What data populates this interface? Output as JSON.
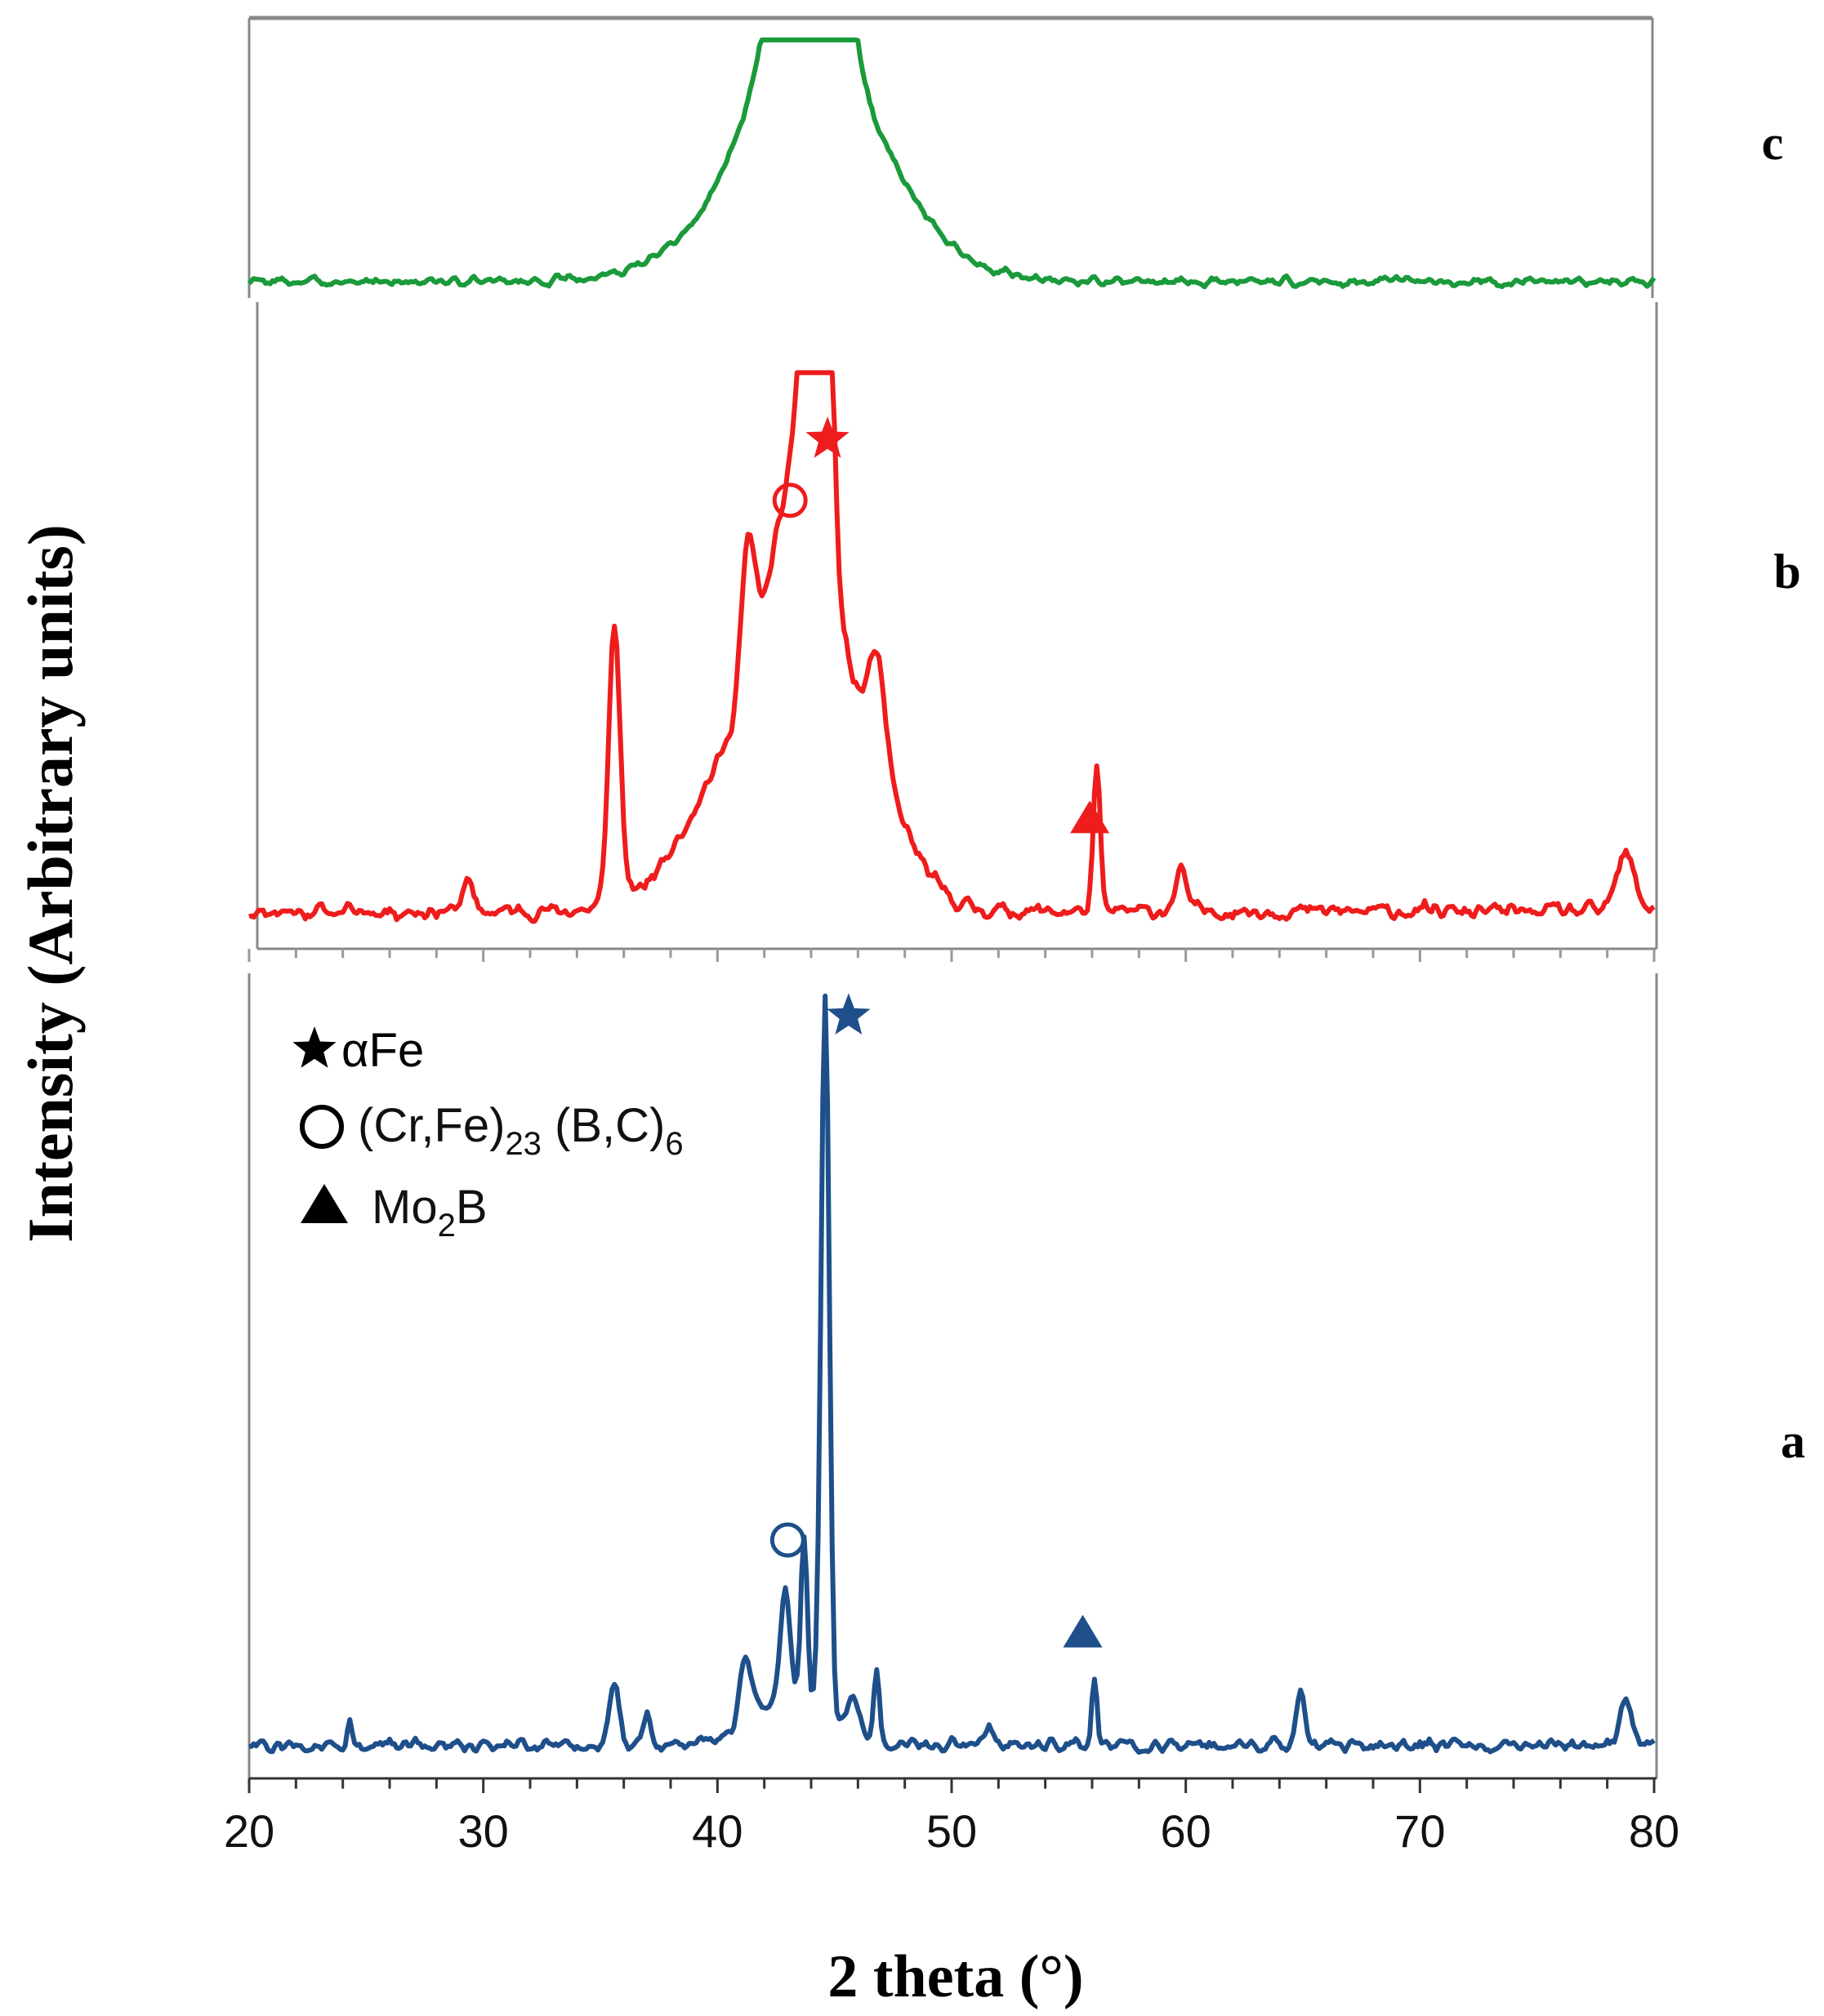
{
  "chart_data": {
    "type": "line",
    "title": "",
    "xlabel": "2 theta (°)",
    "ylabel": "Intensity (Arbitrary units)",
    "xlim": [
      20,
      80
    ],
    "x_ticks": [
      20,
      30,
      40,
      50,
      60,
      70,
      80
    ],
    "x_tick_labels": [
      "20",
      "30",
      "40",
      "50",
      "60",
      "70",
      "80"
    ],
    "grid": false,
    "legend": {
      "placement": "top-left of panel a",
      "entries": [
        {
          "symbol": "star",
          "label": "αFe",
          "label_main": "αFe"
        },
        {
          "symbol": "circle",
          "label": "(Cr,Fe)23 (B,C)6",
          "parts": [
            "(Cr,Fe)",
            "23",
            " (B,C)",
            "6"
          ]
        },
        {
          "symbol": "triangle",
          "label": "Mo2B",
          "parts": [
            "Mo",
            "2",
            "B"
          ]
        }
      ]
    },
    "series": [
      {
        "name": "c",
        "color": "#1a9a3a",
        "ylim": [
          0,
          1
        ],
        "peaks": [
          [
            43.3,
            1.0,
            0.9
          ],
          [
            44.6,
            1.0,
            0.9
          ],
          [
            44.0,
            0.6,
            3.5
          ],
          [
            41.5,
            0.2,
            1.2
          ],
          [
            46.5,
            0.15,
            1.5
          ]
        ],
        "baseline": 0.05,
        "noise": 0.025,
        "seed": 3
      },
      {
        "name": "b",
        "color": "#ee1c1c",
        "ylim": [
          0,
          1
        ],
        "peaks": [
          [
            35.6,
            0.5,
            0.25
          ],
          [
            41.3,
            0.25,
            0.3
          ],
          [
            41.0,
            0.28,
            2.2
          ],
          [
            43.8,
            0.45,
            0.3
          ],
          [
            44.7,
            0.6,
            0.25
          ],
          [
            43.5,
            0.55,
            1.3
          ],
          [
            46.8,
            0.18,
            0.35
          ],
          [
            46.0,
            0.28,
            1.8
          ],
          [
            56.2,
            0.25,
            0.15
          ],
          [
            59.8,
            0.07,
            0.25
          ],
          [
            78.8,
            0.1,
            0.4
          ],
          [
            29.3,
            0.06,
            0.2
          ]
        ],
        "baseline": 0.05,
        "noise": 0.02,
        "seed": 11
      },
      {
        "name": "a",
        "color": "#1e4f8a",
        "ylim": [
          0,
          1
        ],
        "peaks": [
          [
            44.6,
            0.95,
            0.18
          ],
          [
            43.7,
            0.22,
            0.14
          ],
          [
            42.9,
            0.15,
            0.2
          ],
          [
            41.2,
            0.09,
            0.25
          ],
          [
            35.6,
            0.09,
            0.2
          ],
          [
            37.0,
            0.04,
            0.15
          ],
          [
            46.8,
            0.09,
            0.12
          ],
          [
            45.8,
            0.05,
            0.3
          ],
          [
            56.1,
            0.09,
            0.12
          ],
          [
            64.9,
            0.07,
            0.18
          ],
          [
            78.8,
            0.06,
            0.25
          ],
          [
            24.3,
            0.03,
            0.1
          ],
          [
            51.6,
            0.025,
            0.15
          ],
          [
            43.0,
            0.06,
            1.5
          ]
        ],
        "baseline": 0.03,
        "noise": 0.012,
        "seed": 27
      }
    ],
    "markers": [
      {
        "series": "b",
        "symbol": "star",
        "x": 44.7,
        "y_frac": 0.9
      },
      {
        "series": "b",
        "symbol": "circle",
        "x": 43.1,
        "y_frac": 0.79
      },
      {
        "series": "b",
        "symbol": "triangle",
        "x": 55.9,
        "y_frac": 0.22
      },
      {
        "series": "a",
        "symbol": "star",
        "x": 45.6,
        "y_frac": 0.99
      },
      {
        "series": "a",
        "symbol": "circle",
        "x": 43.0,
        "y_frac": 0.3
      },
      {
        "series": "a",
        "symbol": "triangle",
        "x": 55.6,
        "y_frac": 0.18
      }
    ],
    "panel_labels": [
      "c",
      "b",
      "a"
    ]
  }
}
